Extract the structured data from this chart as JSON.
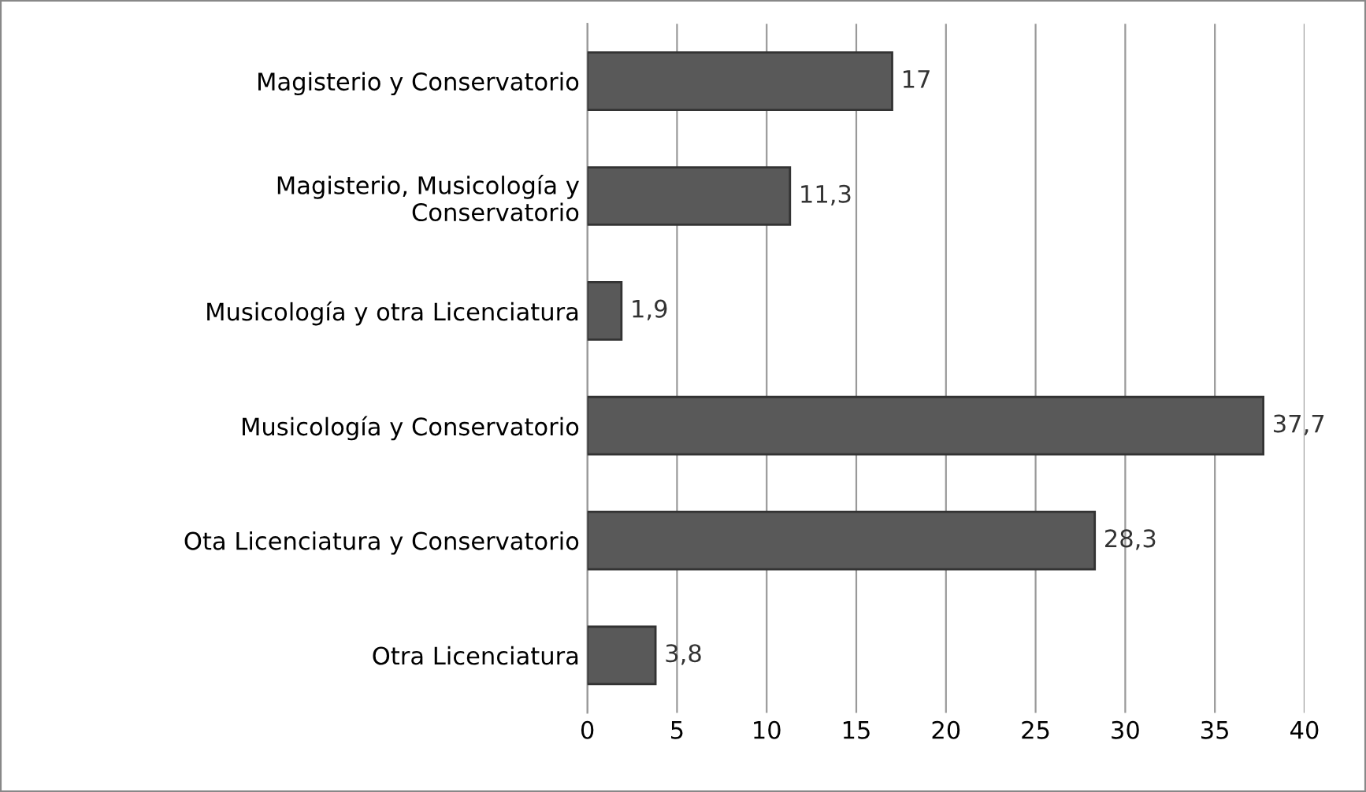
{
  "chart_data": {
    "type": "bar",
    "orientation": "horizontal",
    "categories": [
      "Magisterio y Conservatorio",
      "Magisterio, Musicología y\nConservatorio",
      "Musicología y otra Licenciatura",
      "Musicología y Conservatorio",
      "Ota Licenciatura y Conservatorio",
      "Otra Licenciatura"
    ],
    "values": [
      17,
      11.3,
      1.9,
      37.7,
      28.3,
      3.8
    ],
    "value_labels": [
      "17",
      "11,3",
      "1,9",
      "37,7",
      "28,3",
      "3,8"
    ],
    "color": "#595959",
    "xlim": [
      0,
      40
    ],
    "xticks": [
      0,
      5,
      10,
      15,
      20,
      25,
      30,
      35,
      40
    ],
    "grid": "x",
    "legend": false
  }
}
